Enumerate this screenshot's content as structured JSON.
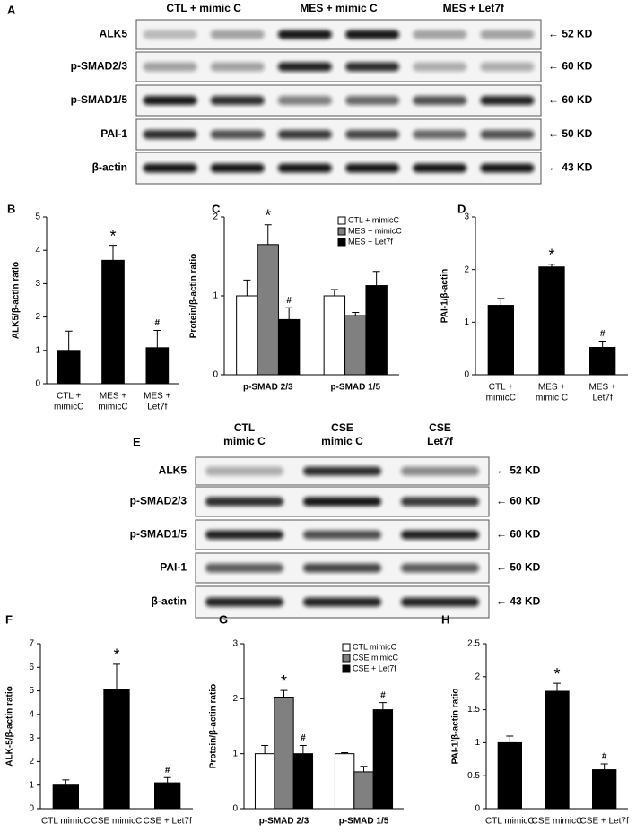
{
  "blot_a": {
    "label": "A",
    "columns": [
      "CTL + mimic C",
      "MES + mimic C",
      "MES + Let7f"
    ],
    "rows": [
      {
        "protein": "ALK5",
        "size": "← 52 KD"
      },
      {
        "protein": "p-SMAD2/3",
        "size": "← 60 KD"
      },
      {
        "protein": "p-SMAD1/5",
        "size": "← 60 KD"
      },
      {
        "protein": "PAI-1",
        "size": "← 50 KD"
      },
      {
        "protein": "β-actin",
        "size": "← 43 KD"
      }
    ]
  },
  "blot_e": {
    "label": "E",
    "columns": [
      [
        "CTL",
        "mimic C"
      ],
      [
        "CSE",
        "mimic C"
      ],
      [
        "CSE",
        "Let7f"
      ]
    ],
    "rows": [
      {
        "protein": "ALK5",
        "size": "← 52 KD"
      },
      {
        "protein": "p-SMAD2/3",
        "size": "← 60 KD"
      },
      {
        "protein": "p-SMAD1/5",
        "size": "← 60 KD"
      },
      {
        "protein": "PAI-1",
        "size": "← 50 KD"
      },
      {
        "protein": "β-actin",
        "size": "← 43 KD"
      }
    ]
  },
  "chart_data": [
    {
      "type": "bar",
      "label": "B",
      "y_label": "ALK5/β-actin ratio",
      "categories": [
        [
          "CTL +",
          "mimicC"
        ],
        [
          "MES +",
          "mimicC"
        ],
        [
          "MES +",
          "Let7f"
        ]
      ],
      "series": [
        {
          "color": "#000000",
          "values": [
            1.0,
            3.7,
            1.08
          ],
          "errors": [
            0.58,
            0.45,
            0.52
          ],
          "markers": [
            null,
            "*",
            "#"
          ]
        }
      ],
      "ylim": [
        0,
        5
      ],
      "yticks": [
        0,
        1,
        2,
        3,
        4,
        5
      ]
    },
    {
      "type": "bar",
      "label": "C",
      "y_label": "Protein/β-actin ratio",
      "categories": [
        "p-SMAD 2/3",
        "p-SMAD 1/5"
      ],
      "series": [
        {
          "name": "CTL + mimicC",
          "color": "#ffffff",
          "values": [
            1.0,
            1.0
          ],
          "errors": [
            0.2,
            0.08
          ],
          "markers": [
            null,
            null
          ]
        },
        {
          "name": "MES + mimicC",
          "color": "#808080",
          "values": [
            1.65,
            0.75
          ],
          "errors": [
            0.25,
            0.04
          ],
          "markers": [
            "*",
            null
          ]
        },
        {
          "name": "MES + Let7f",
          "color": "#000000",
          "values": [
            0.7,
            1.13
          ],
          "errors": [
            0.15,
            0.18
          ],
          "markers": [
            "#",
            null
          ]
        }
      ],
      "ylim": [
        0,
        2
      ],
      "yticks": [
        0,
        1,
        2
      ],
      "legend": "top-right"
    },
    {
      "type": "bar",
      "label": "D",
      "y_label": "PAI-1/β-actin",
      "categories": [
        [
          "CTL +",
          "mimicC"
        ],
        [
          "MES +",
          "mimic C"
        ],
        [
          "MES +",
          "Let7f"
        ]
      ],
      "series": [
        {
          "color": "#000000",
          "values": [
            1.32,
            2.05,
            0.52
          ],
          "errors": [
            0.13,
            0.05,
            0.12
          ],
          "markers": [
            null,
            "*",
            "#"
          ]
        }
      ],
      "ylim": [
        0,
        3
      ],
      "yticks": [
        0,
        1,
        2,
        3
      ]
    },
    {
      "type": "bar",
      "label": "F",
      "y_label": "ALK-5/β-actin ratio",
      "categories": [
        "CTL mimicC",
        "CSE mimicC",
        "CSE + Let7f"
      ],
      "series": [
        {
          "color": "#000000",
          "values": [
            1.0,
            5.05,
            1.1
          ],
          "errors": [
            0.22,
            1.08,
            0.22
          ],
          "markers": [
            null,
            "*",
            "#"
          ]
        }
      ],
      "ylim": [
        0,
        7
      ],
      "yticks": [
        0,
        1,
        2,
        3,
        4,
        5,
        6,
        7
      ]
    },
    {
      "type": "bar",
      "label": "G",
      "y_label": "Protein/β-actin ratio",
      "categories": [
        "p-SMAD 2/3",
        "p-SMAD 1/5"
      ],
      "series": [
        {
          "name": "CTL mimicC",
          "color": "#ffffff",
          "values": [
            1.0,
            1.0
          ],
          "errors": [
            0.15,
            0.02
          ],
          "markers": [
            null,
            null
          ]
        },
        {
          "name": "CSE mimicC",
          "color": "#808080",
          "values": [
            2.03,
            0.67
          ],
          "errors": [
            0.12,
            0.1
          ],
          "markers": [
            "*",
            null
          ]
        },
        {
          "name": "CSE + Let7f",
          "color": "#000000",
          "values": [
            1.0,
            1.8
          ],
          "errors": [
            0.15,
            0.13
          ],
          "markers": [
            "#",
            "#"
          ]
        }
      ],
      "ylim": [
        0,
        3
      ],
      "yticks": [
        0,
        1,
        2,
        3
      ],
      "legend": "top-right"
    },
    {
      "type": "bar",
      "label": "H",
      "y_label": "PAI-1/β-actin ratio",
      "categories": [
        "CTL mimicC",
        "CSE mimicC",
        "CSE + Let7f"
      ],
      "series": [
        {
          "color": "#000000",
          "values": [
            1.0,
            1.78,
            0.59
          ],
          "errors": [
            0.1,
            0.12,
            0.09
          ],
          "markers": [
            null,
            "*",
            "#"
          ]
        }
      ],
      "ylim": [
        0,
        2.5
      ],
      "yticks": [
        0,
        0.5,
        1,
        1.5,
        2,
        2.5
      ]
    }
  ]
}
